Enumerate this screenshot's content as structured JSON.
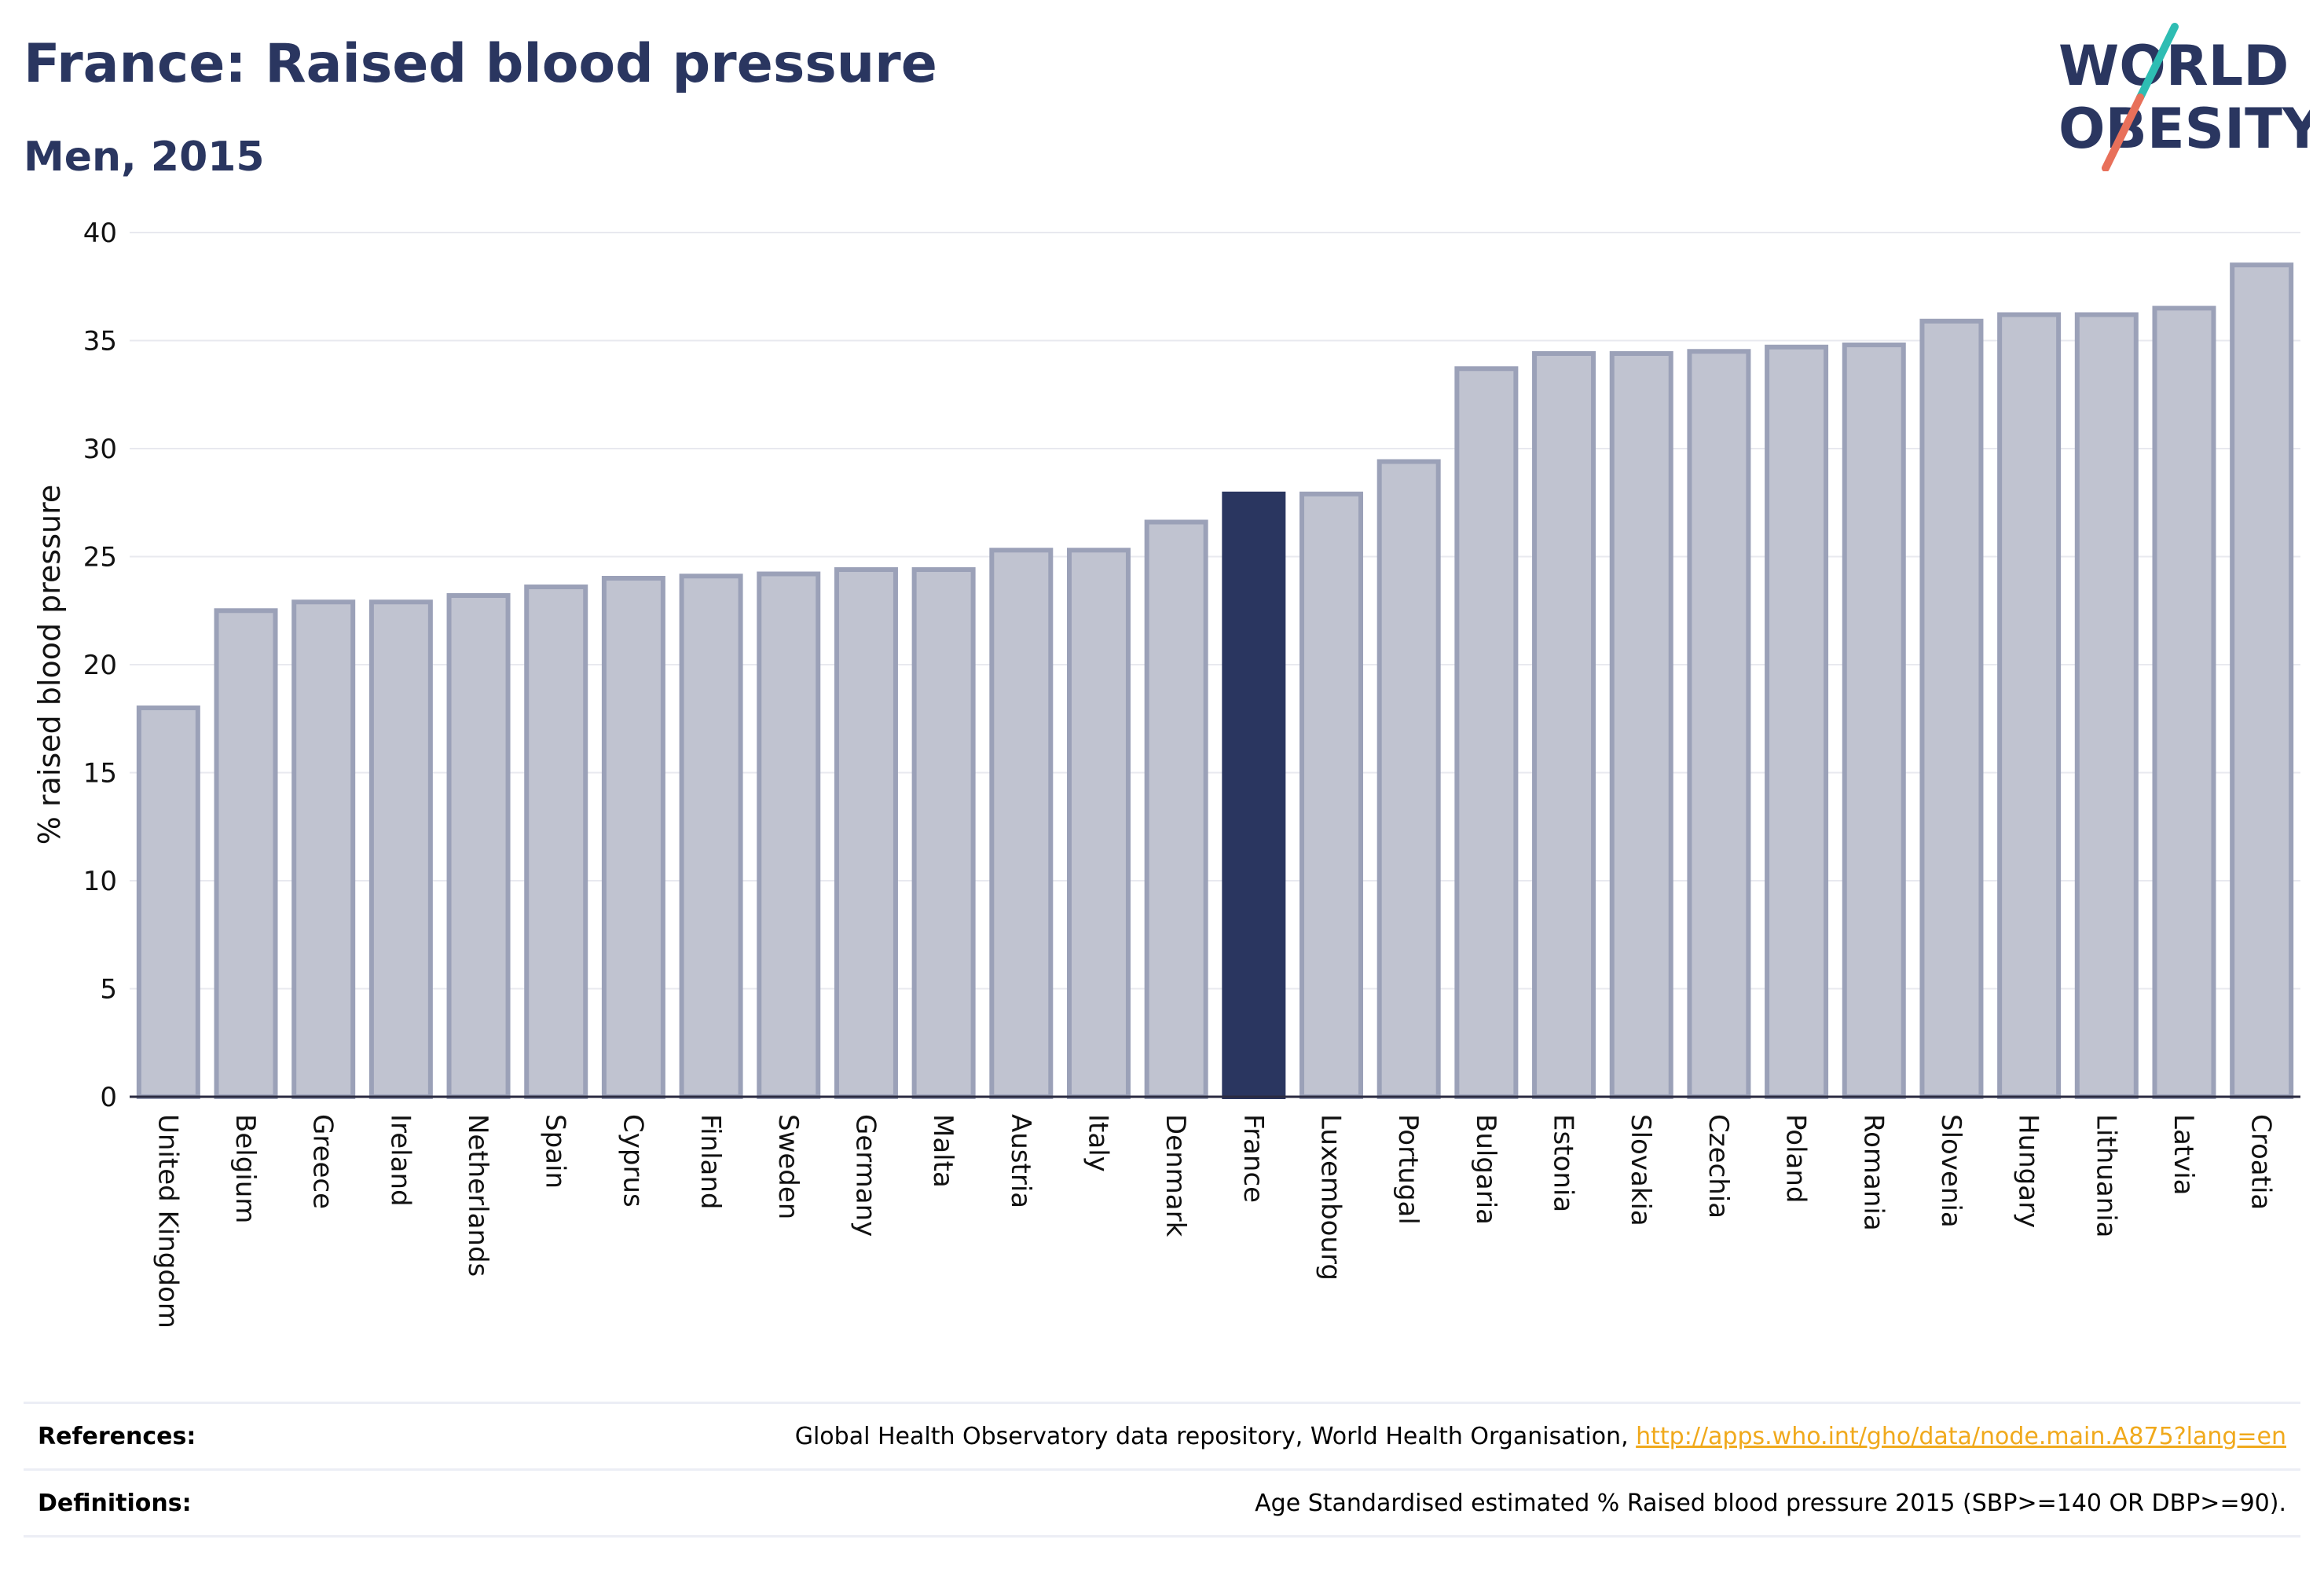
{
  "header": {
    "title": "France: Raised blood pressure",
    "subtitle": "Men, 2015",
    "logo_line1": "WORLD",
    "logo_line2": "OBESITY"
  },
  "colors": {
    "title": "#2a3660",
    "bar": "#c0c3d0",
    "bar_border": "#9ba1b8",
    "highlight": "#2a3660",
    "link": "#f0a91c",
    "logo_teal": "#2ebdb3",
    "logo_red": "#e8705a"
  },
  "chart_data": {
    "type": "bar",
    "categories": [
      "United Kingdom",
      "Belgium",
      "Greece",
      "Ireland",
      "Netherlands",
      "Spain",
      "Cyprus",
      "Finland",
      "Sweden",
      "Germany",
      "Malta",
      "Austria",
      "Italy",
      "Denmark",
      "France",
      "Luxembourg",
      "Portugal",
      "Bulgaria",
      "Estonia",
      "Slovakia",
      "Czechia",
      "Poland",
      "Romania",
      "Slovenia",
      "Hungary",
      "Lithuania",
      "Latvia",
      "Croatia"
    ],
    "values": [
      18.0,
      22.5,
      22.9,
      22.9,
      23.2,
      23.6,
      24.0,
      24.1,
      24.2,
      24.4,
      24.4,
      25.3,
      25.3,
      26.6,
      27.9,
      27.9,
      29.4,
      33.7,
      34.4,
      34.4,
      34.5,
      34.7,
      34.8,
      35.9,
      36.2,
      36.2,
      36.5,
      38.5
    ],
    "highlight": "France",
    "ylabel": "% raised blood pressure",
    "ylim": [
      0,
      40
    ],
    "yticks": [
      0,
      5,
      10,
      15,
      20,
      25,
      30,
      35,
      40
    ],
    "grid": true
  },
  "footer": {
    "references_label": "References:",
    "references_text": "Global Health Observatory data repository, World Health Organisation, ",
    "references_link": "http://apps.who.int/gho/data/node.main.A875?lang=en",
    "definitions_label": "Definitions:",
    "definitions_text": "Age Standardised estimated % Raised blood pressure 2015 (SBP>=140 OR DBP>=90)."
  }
}
